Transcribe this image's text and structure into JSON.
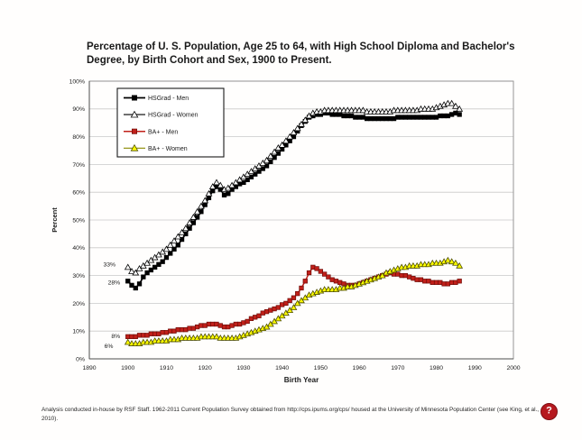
{
  "page": {
    "footnote": "Analysis conducted in-house by RSF Staff. 1962-2011 Current Population Survey obtained from http://cps.ipums.org/cps/ housed at the University of Minnesota Population Center (see King, et al., 2010).",
    "help_badge": "?"
  },
  "colors": {
    "gridline": "#c9c9c9",
    "plot_border": "#8c8c8c",
    "axis_line": "#4d4d4d",
    "text": "#1a1a1a",
    "badge": "#b6191f"
  },
  "chart_data": {
    "type": "line",
    "title": "Percentage of U. S. Population, Age 25 to 64, with High School Diploma and Bachelor's Degree, by Birth Cohort and Sex, 1900 to Present.",
    "xlabel": "Birth Year",
    "ylabel": "Percent",
    "xlim": [
      1890,
      2000
    ],
    "ylim": [
      0,
      100
    ],
    "grid": true,
    "legend_position": "top-left",
    "x_start": 1900,
    "x_step": 1,
    "x_ticks": [
      {
        "value": 1890,
        "label": "1890"
      },
      {
        "value": 1900,
        "label": "1900"
      },
      {
        "value": 1910,
        "label": "1910"
      },
      {
        "value": 1920,
        "label": "1920"
      },
      {
        "value": 1930,
        "label": "1930"
      },
      {
        "value": 1940,
        "label": "1940"
      },
      {
        "value": 1950,
        "label": "1950"
      },
      {
        "value": 1960,
        "label": "1960"
      },
      {
        "value": 1970,
        "label": "1970"
      },
      {
        "value": 1980,
        "label": "1980"
      },
      {
        "value": 1990,
        "label": "1990"
      },
      {
        "value": 2000,
        "label": "2000"
      }
    ],
    "y_ticks": [
      {
        "value": 0,
        "label": "0%"
      },
      {
        "value": 10,
        "label": "10%"
      },
      {
        "value": 20,
        "label": "20%"
      },
      {
        "value": 30,
        "label": "30%"
      },
      {
        "value": 40,
        "label": "40%"
      },
      {
        "value": 50,
        "label": "50%"
      },
      {
        "value": 60,
        "label": "60%"
      },
      {
        "value": 70,
        "label": "70%"
      },
      {
        "value": 80,
        "label": "80%"
      },
      {
        "value": 90,
        "label": "90%"
      },
      {
        "value": 100,
        "label": "100%"
      }
    ],
    "series": [
      {
        "id": "hsgrad-men",
        "name": "HSGrad - Men",
        "marker": "square",
        "marker_fill": "#000000",
        "marker_stroke": "#000000",
        "line_color": "#000000",
        "line_width": 1.7,
        "values": [
          28,
          26.5,
          25.5,
          27,
          29.5,
          31,
          32,
          33,
          34,
          35,
          36.5,
          38,
          39.5,
          41,
          43,
          45,
          47,
          49,
          51,
          53,
          55.5,
          58,
          60.5,
          62,
          61,
          59,
          59.5,
          61,
          62,
          63,
          63.5,
          64.5,
          65.5,
          66.5,
          67.5,
          68.5,
          69.5,
          71,
          72.5,
          74,
          75.5,
          77,
          78.5,
          80,
          82,
          84,
          85.5,
          87,
          87.5,
          88,
          88,
          88.5,
          88.5,
          88,
          88,
          88,
          87.5,
          87.5,
          87.5,
          87,
          87,
          87,
          86.5,
          86.5,
          86.5,
          86.5,
          86.5,
          86.5,
          86.5,
          86.5,
          87,
          87,
          87,
          87,
          87,
          87,
          87,
          87,
          87,
          87,
          87,
          87.5,
          87.5,
          87.5,
          88,
          88.5,
          88
        ]
      },
      {
        "id": "hsgrad-women",
        "name": "HSGrad - Women",
        "marker": "triangle",
        "marker_fill": "#ffffff",
        "marker_stroke": "#000000",
        "line_color": "#000000",
        "line_width": 0.9,
        "values": [
          33,
          31.5,
          31,
          32.5,
          33.5,
          34.5,
          35.5,
          36.5,
          37.5,
          38.5,
          39.5,
          41,
          42.5,
          44,
          45.5,
          47,
          49,
          51,
          53,
          55,
          57,
          59.5,
          62,
          63.5,
          62.5,
          61,
          61.5,
          62.5,
          63.5,
          64.5,
          65.5,
          66.5,
          67.5,
          68.5,
          69.5,
          70.5,
          71.5,
          73,
          74.5,
          76,
          77,
          78.5,
          80,
          81.5,
          83,
          84.5,
          86,
          87.5,
          88.5,
          89,
          89,
          89.5,
          89.5,
          89.5,
          89.5,
          89.5,
          89.5,
          89.5,
          89.5,
          89.5,
          89.5,
          89.5,
          89,
          89,
          89,
          89,
          89,
          89,
          89,
          89.5,
          89.5,
          89.5,
          89.5,
          89.5,
          89.5,
          89.5,
          90,
          90,
          90,
          90,
          90.5,
          91,
          91.5,
          92,
          92,
          91,
          90
        ]
      },
      {
        "id": "ba-men",
        "name": "BA+ - Men",
        "marker": "square",
        "marker_fill": "#c1201a",
        "marker_stroke": "#6e0c08",
        "line_color": "#c1201a",
        "line_width": 1.5,
        "values": [
          8,
          8,
          8,
          8.5,
          8.5,
          8.5,
          9,
          9,
          9,
          9.5,
          9.5,
          10,
          10,
          10.5,
          10.5,
          10.5,
          11,
          11,
          11.5,
          12,
          12,
          12.5,
          12.5,
          12.5,
          12,
          11.5,
          11.5,
          12,
          12.5,
          12.5,
          13,
          13.5,
          14.5,
          15,
          15.5,
          16.5,
          17,
          17.5,
          18,
          18.5,
          19.5,
          20,
          21,
          22,
          23.5,
          25.5,
          28,
          31,
          33,
          32.5,
          31.5,
          30.5,
          29.5,
          28.5,
          28,
          27.5,
          27,
          26.5,
          26.5,
          26.5,
          27,
          27.5,
          28,
          28.5,
          29,
          29.5,
          30,
          30.5,
          31,
          30.5,
          30.5,
          30,
          30,
          29.5,
          29,
          28.5,
          28.5,
          28,
          28,
          27.5,
          27.5,
          27.5,
          27,
          27,
          27.5,
          27.5,
          28
        ]
      },
      {
        "id": "ba-women",
        "name": "BA+ - Women",
        "marker": "triangle",
        "marker_fill": "#ffff00",
        "marker_stroke": "#4d4d00",
        "line_color": "#8a8a00",
        "line_width": 0.9,
        "values": [
          6,
          5.5,
          5.5,
          5.5,
          6,
          6,
          6,
          6.5,
          6.5,
          6.5,
          6.5,
          7,
          7,
          7,
          7.5,
          7.5,
          7.5,
          7.5,
          7.5,
          8,
          8,
          8,
          8,
          8,
          7.5,
          7.5,
          7.5,
          7.5,
          7.5,
          8,
          8.5,
          9,
          9.5,
          10,
          10.5,
          11,
          11.5,
          12.5,
          13.5,
          14.5,
          15.5,
          16.5,
          17.5,
          18.5,
          20,
          21,
          22,
          23,
          23.5,
          24,
          24.5,
          25,
          25,
          25,
          25,
          25.5,
          25.5,
          26,
          26,
          26.5,
          27,
          27.5,
          28,
          28.5,
          29,
          29.5,
          30,
          31,
          31.5,
          32,
          32.5,
          33,
          33,
          33.5,
          33.5,
          33.5,
          34,
          34,
          34,
          34.5,
          34.5,
          34.5,
          35,
          35.5,
          35,
          34.5,
          33.5
        ]
      }
    ],
    "annotations": [
      {
        "label": "33%",
        "year": 1896.8,
        "pct": 34.0
      },
      {
        "label": "28%",
        "year": 1898.0,
        "pct": 27.6
      },
      {
        "label": "8%",
        "year": 1898.0,
        "pct": 8.2
      },
      {
        "label": "6%",
        "year": 1896.2,
        "pct": 4.6
      }
    ],
    "legend": {
      "items": [
        "HSGrad - Men",
        "HSGrad - Women",
        "BA+ - Men",
        "BA+ - Women"
      ]
    }
  }
}
